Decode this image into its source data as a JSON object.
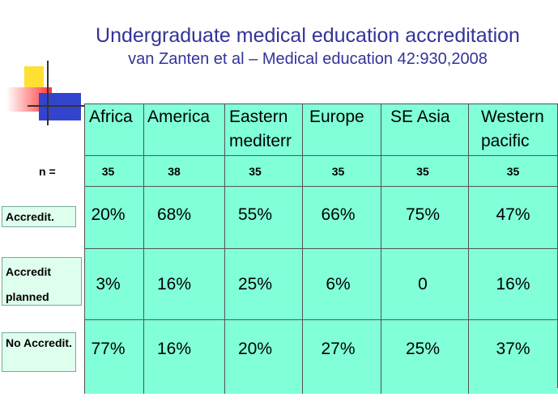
{
  "title": "Undergraduate medical education accreditation",
  "subtitle": "van Zanten et al – Medical education 42:930,2008",
  "table": {
    "columns": [
      "Africa",
      "America",
      "Eastern mediterr",
      "Europe",
      "SE Asia",
      "Western pacific"
    ],
    "n_label": "n =",
    "n": [
      "35",
      "38",
      "35",
      "35",
      "35",
      "35"
    ],
    "rows": [
      {
        "label": "Accredit.",
        "cells": [
          "20%",
          "68%",
          "55%",
          "66%",
          "75%",
          "47%"
        ]
      },
      {
        "label": "Accredit planned",
        "cells": [
          "3%",
          "16%",
          "25%",
          "6%",
          "0",
          "16%"
        ]
      },
      {
        "label": "No Accredit.",
        "cells": [
          "77%",
          "16%",
          "20%",
          "27%",
          "25%",
          "37%"
        ]
      }
    ]
  }
}
